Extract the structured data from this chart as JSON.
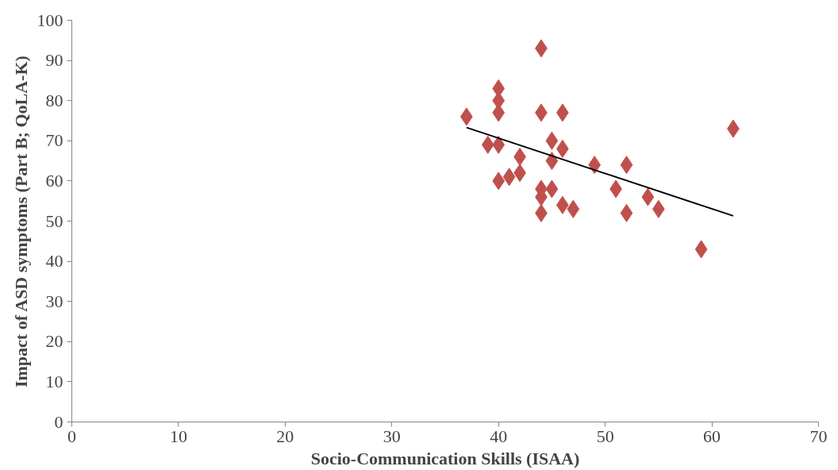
{
  "chart_data": {
    "type": "scatter",
    "xlabel": "Socio-Communication Skills (ISAA)",
    "ylabel": "Impact of ASD symptoms (Part B; QoLA-K)",
    "xlim": [
      0,
      70
    ],
    "ylim": [
      0,
      100
    ],
    "xticks": [
      0,
      10,
      20,
      30,
      40,
      50,
      60,
      70
    ],
    "yticks": [
      0,
      10,
      20,
      30,
      40,
      50,
      60,
      70,
      80,
      90,
      100
    ],
    "grid": false,
    "marker": "diamond",
    "series": [
      {
        "color": "#c0504d",
        "x": [
          37,
          39,
          40,
          40,
          40,
          40,
          40,
          41,
          42,
          42,
          44,
          44,
          44,
          44,
          44,
          45,
          45,
          45,
          46,
          46,
          46,
          47,
          49,
          51,
          52,
          52,
          54,
          55,
          59,
          62
        ],
        "values": [
          76,
          69,
          83,
          80,
          77,
          69,
          60,
          61,
          62,
          66,
          93,
          77,
          58,
          56,
          52,
          70,
          65,
          58,
          77,
          68,
          54,
          53,
          64,
          58,
          64,
          52,
          56,
          53,
          43,
          73
        ]
      },
      {
        "type": "line",
        "color": "#000000",
        "marker": "none",
        "x": [
          37,
          62
        ],
        "values": [
          73.3,
          51.3
        ]
      }
    ]
  }
}
